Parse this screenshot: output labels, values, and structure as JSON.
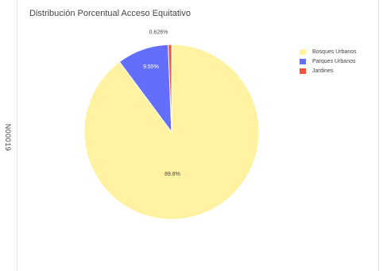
{
  "side_code": "N00019",
  "chart_data": {
    "type": "pie",
    "title": "Distribución Porcentual Acceso Equitativo",
    "slices": [
      {
        "label": "Bosques Urbanos",
        "value": 89.8,
        "value_label": "89.8%",
        "color": "#FFF2A0"
      },
      {
        "label": "Parques Urbanos",
        "value": 9.55,
        "value_label": "9.55%",
        "color": "#636EFA"
      },
      {
        "label": "Jardines",
        "value": 0.626,
        "value_label": "0.626%",
        "color": "#EF553B"
      }
    ],
    "legend_position": "top-right"
  }
}
